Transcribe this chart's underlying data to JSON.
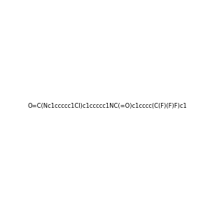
{
  "smiles": "O=C(Nc1ccccc1Cl)c1ccccc1NC(=O)c1cccc(C(F)(F)F)c1",
  "image_size": 300,
  "background_color": "#f0f0f0",
  "title": "",
  "atom_colors": {
    "O": "#ff0000",
    "N": "#0000ff",
    "F": "#ff00ff",
    "Cl": "#00cc00",
    "C": "#404040",
    "H": "#404040"
  }
}
